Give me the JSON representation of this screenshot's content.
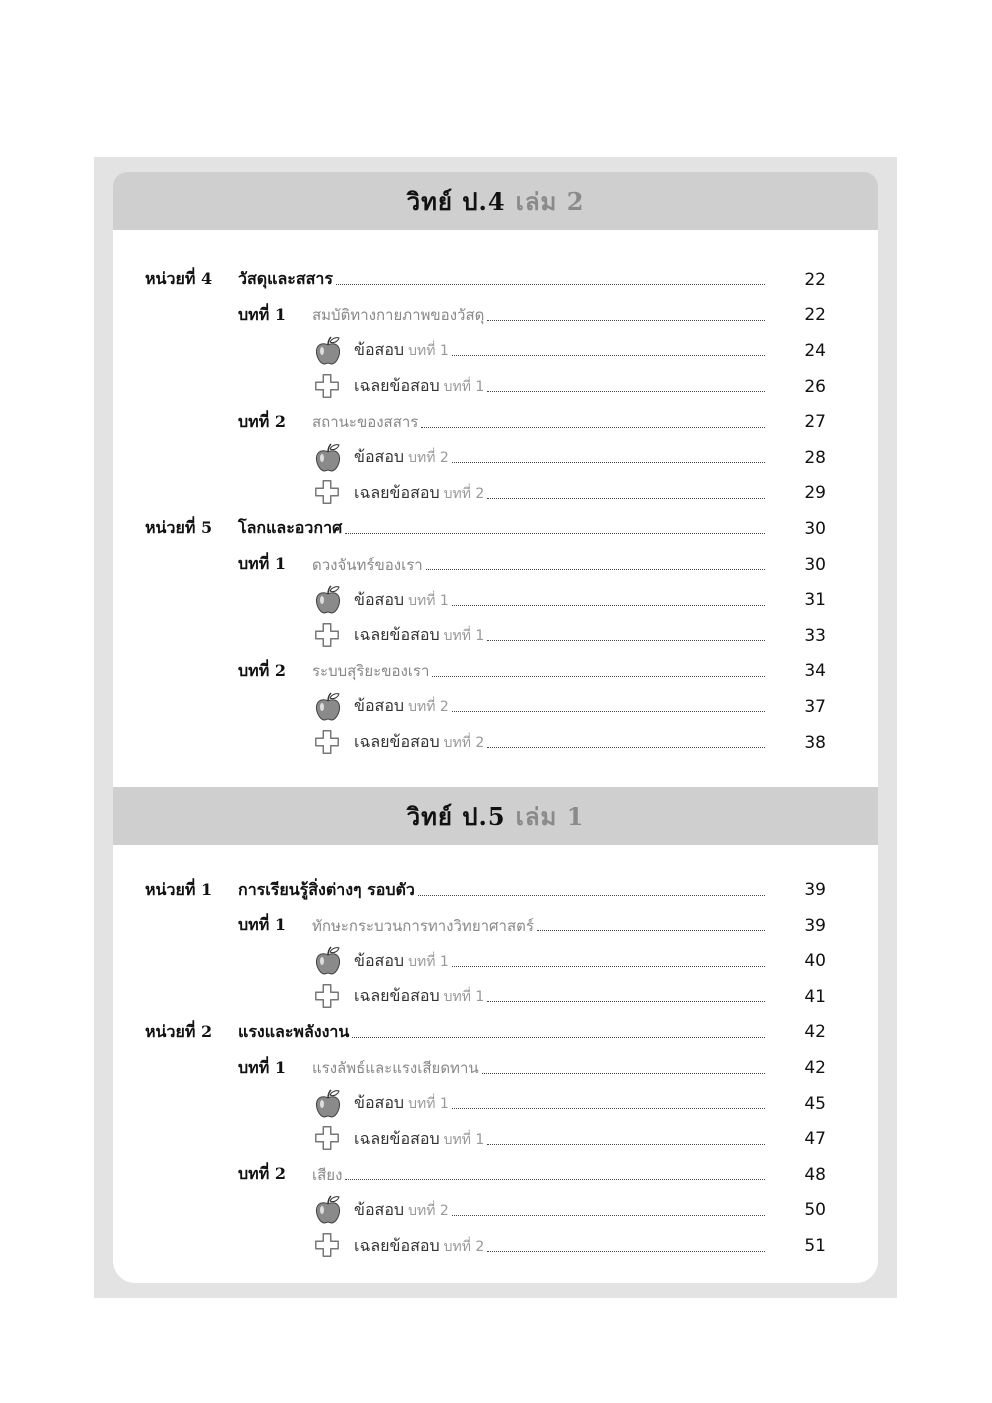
{
  "sections": [
    {
      "title_main": "วิทย์ ป.4",
      "title_volume": "เล่ม 2",
      "entries": [
        {
          "type": "unit",
          "label": "หน่วยที่ 4",
          "title": "วัสดุและสสาร",
          "page": "22"
        },
        {
          "type": "chapter",
          "label": "บทที่ 1",
          "title": "สมบัติทางกายภาพของวัสดุ",
          "page": "22"
        },
        {
          "type": "exam",
          "icon": "apple-icon",
          "strong": "ข้อสอบ",
          "light": "บทที่ 1",
          "page": "24"
        },
        {
          "type": "answer",
          "icon": "plus-icon",
          "strong": "เฉลยข้อสอบ",
          "light": "บทที่ 1",
          "page": "26"
        },
        {
          "type": "chapter",
          "label": "บทที่ 2",
          "title": "สถานะของสสาร",
          "page": "27"
        },
        {
          "type": "exam",
          "icon": "apple-icon",
          "strong": "ข้อสอบ",
          "light": "บทที่ 2",
          "page": "28"
        },
        {
          "type": "answer",
          "icon": "plus-icon",
          "strong": "เฉลยข้อสอบ",
          "light": "บทที่ 2",
          "page": "29"
        },
        {
          "type": "unit",
          "label": "หน่วยที่ 5",
          "title": "โลกและอวกาศ",
          "page": "30"
        },
        {
          "type": "chapter",
          "label": "บทที่ 1",
          "title": "ดวงจันทร์ของเรา",
          "page": "30"
        },
        {
          "type": "exam",
          "icon": "apple-icon",
          "strong": "ข้อสอบ",
          "light": "บทที่ 1",
          "page": "31"
        },
        {
          "type": "answer",
          "icon": "plus-icon",
          "strong": "เฉลยข้อสอบ",
          "light": "บทที่ 1",
          "page": "33"
        },
        {
          "type": "chapter",
          "label": "บทที่ 2",
          "title": "ระบบสุริยะของเรา",
          "page": "34"
        },
        {
          "type": "exam",
          "icon": "apple-icon",
          "strong": "ข้อสอบ",
          "light": "บทที่ 2",
          "page": "37"
        },
        {
          "type": "answer",
          "icon": "plus-icon",
          "strong": "เฉลยข้อสอบ",
          "light": "บทที่ 2",
          "page": "38"
        }
      ]
    },
    {
      "title_main": "วิทย์ ป.5",
      "title_volume": "เล่ม 1",
      "entries": [
        {
          "type": "unit",
          "label": "หน่วยที่ 1",
          "title": "การเรียนรู้สิ่งต่างๆ รอบตัว",
          "page": "39"
        },
        {
          "type": "chapter",
          "label": "บทที่ 1",
          "title": "ทักษะกระบวนการทางวิทยาศาสตร์",
          "page": "39"
        },
        {
          "type": "exam",
          "icon": "apple-icon",
          "strong": "ข้อสอบ",
          "light": "บทที่ 1",
          "page": "40"
        },
        {
          "type": "answer",
          "icon": "plus-icon",
          "strong": "เฉลยข้อสอบ",
          "light": "บทที่ 1",
          "page": "41"
        },
        {
          "type": "unit",
          "label": "หน่วยที่ 2",
          "title": "แรงและพลังงาน",
          "page": "42"
        },
        {
          "type": "chapter",
          "label": "บทที่ 1",
          "title": "แรงลัพธ์และแรงเสียดทาน",
          "page": "42"
        },
        {
          "type": "exam",
          "icon": "apple-icon",
          "strong": "ข้อสอบ",
          "light": "บทที่ 1",
          "page": "45"
        },
        {
          "type": "answer",
          "icon": "plus-icon",
          "strong": "เฉลยข้อสอบ",
          "light": "บทที่ 1",
          "page": "47"
        },
        {
          "type": "chapter",
          "label": "บทที่ 2",
          "title": "เสียง",
          "page": "48"
        },
        {
          "type": "exam",
          "icon": "apple-icon",
          "strong": "ข้อสอบ",
          "light": "บทที่ 2",
          "page": "50"
        },
        {
          "type": "answer",
          "icon": "plus-icon",
          "strong": "เฉลยข้อสอบ",
          "light": "บทที่ 2",
          "page": "51"
        }
      ]
    }
  ]
}
